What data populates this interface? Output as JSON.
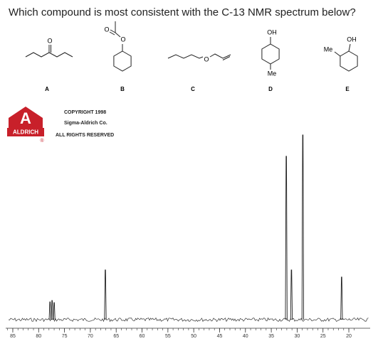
{
  "question": "Which compound is most consistent with the C-13 NMR spectrum below?",
  "structures": [
    {
      "letter": "A",
      "atoms": [
        "O"
      ]
    },
    {
      "letter": "B",
      "atoms": [
        "O",
        "O"
      ]
    },
    {
      "letter": "C",
      "atoms": [
        "O"
      ]
    },
    {
      "letter": "D",
      "atoms": [
        "OH",
        "Me"
      ]
    },
    {
      "letter": "E",
      "atoms": [
        "OH",
        "Me"
      ]
    }
  ],
  "logo": {
    "letter": "A",
    "brand": "ALDRICH",
    "mark": "®"
  },
  "copyright": [
    "COPYRIGHT 1998",
    "Sigma-Aldrich Co.",
    "ALL RIGHTS RESERVED"
  ],
  "spectrum": {
    "xlim": [
      86,
      19
    ],
    "xticks": [
      85,
      80,
      75,
      70,
      65,
      60,
      55,
      50,
      45,
      40,
      35,
      30,
      25,
      20
    ],
    "peaks": {
      "x": [
        77.8,
        77.4,
        77.0,
        67.1,
        32.1,
        31.1,
        28.9,
        21.4
      ],
      "values": [
        25,
        27,
        24,
        70,
        230,
        70,
        260,
        60
      ]
    }
  }
}
